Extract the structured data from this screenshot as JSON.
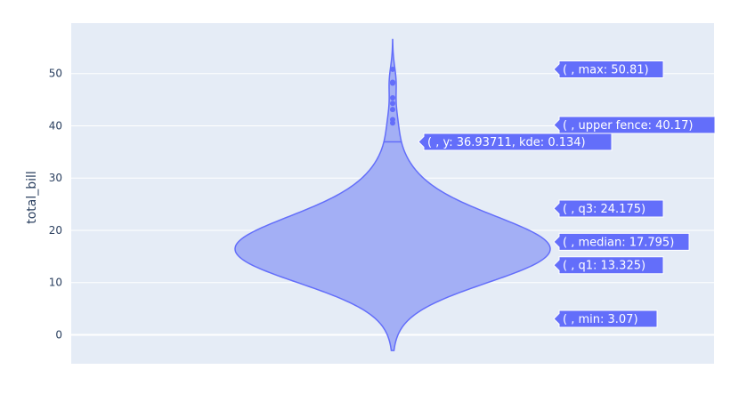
{
  "chart_data": {
    "type": "violin",
    "title": "",
    "xlabel": "",
    "ylabel": "total_bill",
    "ylim": [
      -5.5,
      60
    ],
    "yticks": [
      0,
      10,
      20,
      30,
      40,
      50
    ],
    "grid": true,
    "legend": "none",
    "colors": {
      "plot_bg": "#e5ecf6",
      "grid": "#ffffff",
      "violin_fill": "#a3aff5",
      "violin_line": "#636efa",
      "points": "#636efa",
      "hover_bg": "#636efa",
      "text": "#2a3f5f"
    },
    "stats": {
      "min": 3.07,
      "q1": 13.325,
      "median": 17.795,
      "q3": 24.175,
      "upper_fence": 40.17,
      "max": 50.81
    },
    "outliers": [
      40.55,
      41.19,
      43.11,
      44.3,
      45.35,
      48.17,
      48.27,
      48.33,
      50.81
    ],
    "hover_labels": [
      {
        "key": "max",
        "text": "( , max: 50.81)",
        "y": 50.81
      },
      {
        "key": "upper_fence",
        "text": "( , upper fence: 40.17)",
        "y": 40.17
      },
      {
        "key": "kde",
        "text": "( , y: 36.93711, kde: 0.134)",
        "y": 36.93711
      },
      {
        "key": "q3",
        "text": "( , q3: 24.175)",
        "y": 24.175
      },
      {
        "key": "median",
        "text": "( , median: 17.795)",
        "y": 17.795
      },
      {
        "key": "q1",
        "text": "( , q1: 13.325)",
        "y": 13.325
      },
      {
        "key": "min",
        "text": "( , min: 3.07)",
        "y": 3.07
      }
    ]
  }
}
